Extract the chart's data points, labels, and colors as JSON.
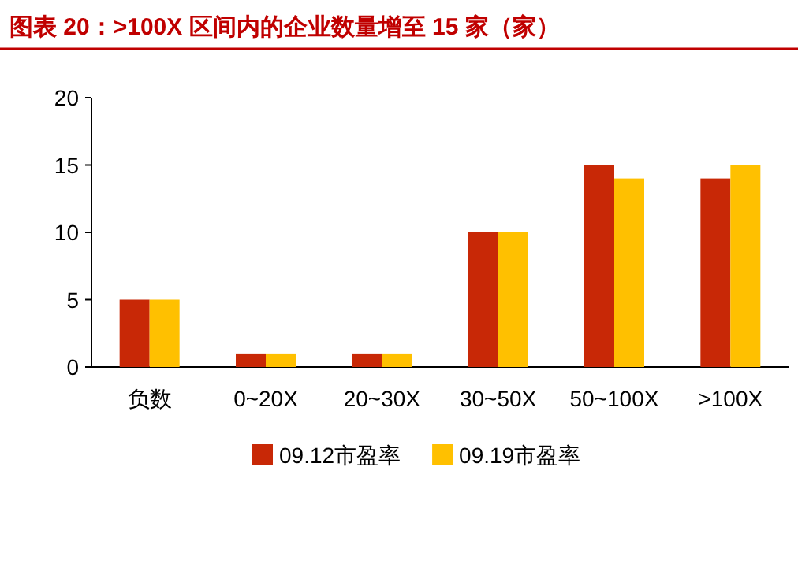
{
  "chart_data": {
    "type": "bar",
    "title": "图表 20：>100X 区间内的企业数量增至 15 家（家）",
    "categories": [
      "负数",
      "0~20X",
      "20~30X",
      "30~50X",
      "50~100X",
      ">100X"
    ],
    "series": [
      {
        "name": "09.12市盈率",
        "color": "#c82806",
        "values": [
          5,
          1,
          1,
          10,
          15,
          14
        ]
      },
      {
        "name": "09.19市盈率",
        "color": "#ffc000",
        "values": [
          5,
          1,
          1,
          10,
          14,
          15
        ]
      }
    ],
    "ylim": [
      0,
      20
    ],
    "yticks": [
      0,
      5,
      10,
      15,
      20
    ],
    "grid": false,
    "legend": "bottom"
  }
}
